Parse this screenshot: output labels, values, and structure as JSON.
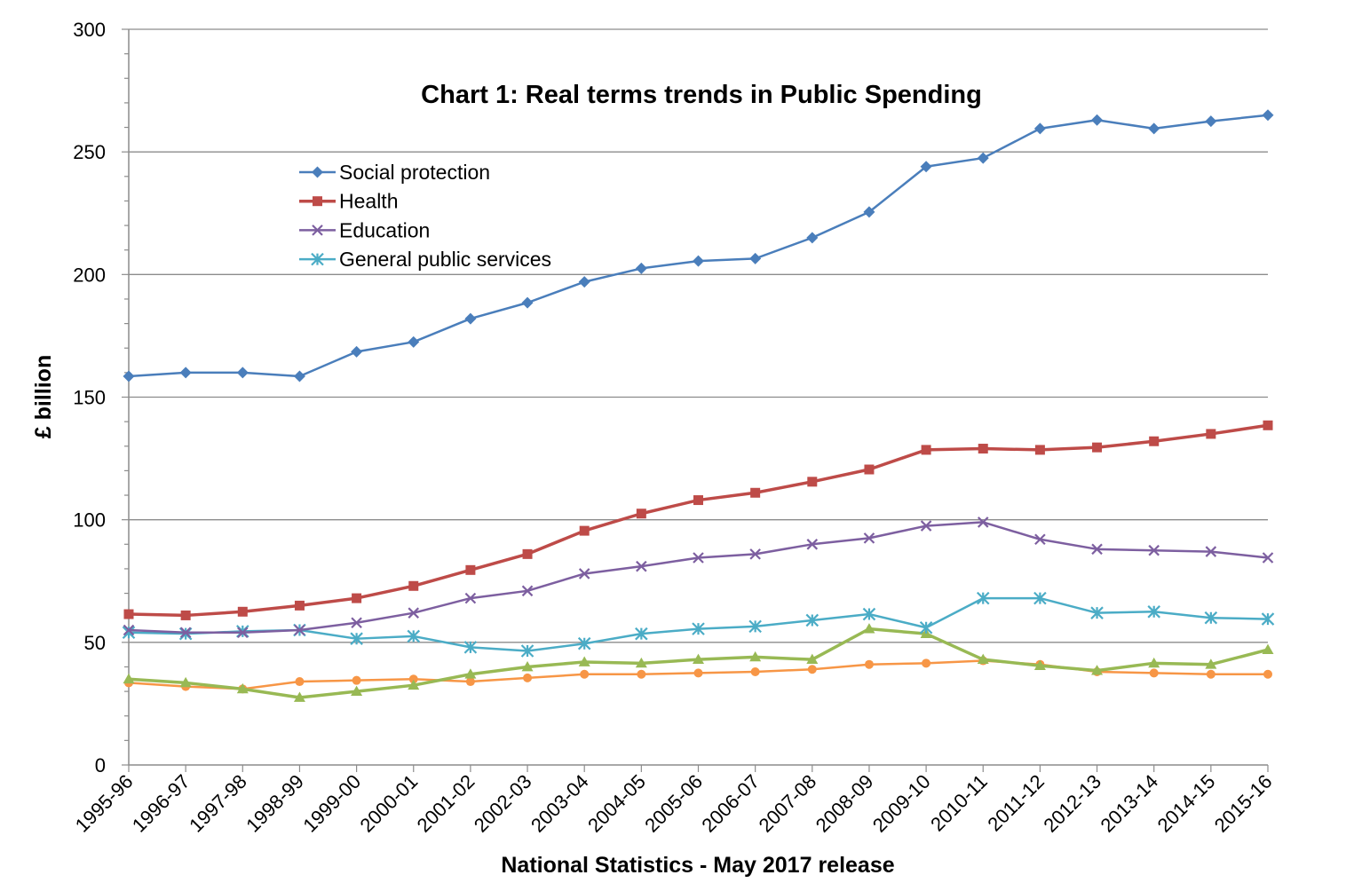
{
  "chart_data": {
    "type": "line",
    "title": "Chart 1: Real terms trends in Public Spending",
    "xlabel": "National Statistics - May 2017 release",
    "ylabel": "£ billion",
    "ylim": [
      0,
      300
    ],
    "yticks": [
      0,
      50,
      100,
      150,
      200,
      250,
      300
    ],
    "grid": true,
    "legend_position": "upper-left",
    "categories": [
      "1995-96",
      "1996-97",
      "1997-98",
      "1998-99",
      "1999-00",
      "2000-01",
      "2001-02",
      "2002-03",
      "2003-04",
      "2004-05",
      "2005-06",
      "2006-07",
      "2007-08",
      "2008-09",
      "2009-10",
      "2010-11",
      "2011-12",
      "2012-13",
      "2013-14",
      "2014-15",
      "2015-16"
    ],
    "series": [
      {
        "name": "Social protection",
        "color": "#4a7ebb",
        "marker": "diamond",
        "in_legend": true,
        "values": [
          158.5,
          160.0,
          160.0,
          158.5,
          168.5,
          172.5,
          182.0,
          188.5,
          197.0,
          202.5,
          205.5,
          206.5,
          215.0,
          225.5,
          244.0,
          247.5,
          259.5,
          263.0,
          259.5,
          262.5,
          265.0
        ]
      },
      {
        "name": "Health",
        "color": "#be4b48",
        "marker": "square",
        "in_legend": true,
        "values": [
          61.5,
          61.0,
          62.5,
          65.0,
          68.0,
          73.0,
          79.5,
          86.0,
          95.5,
          102.5,
          108.0,
          111.0,
          115.5,
          120.5,
          128.5,
          129.0,
          128.5,
          129.5,
          132.0,
          135.0,
          138.5
        ]
      },
      {
        "name": "Education",
        "color": "#7d5fa0",
        "marker": "x",
        "in_legend": true,
        "values": [
          55.0,
          54.0,
          54.0,
          55.0,
          58.0,
          62.0,
          68.0,
          71.0,
          78.0,
          81.0,
          84.5,
          86.0,
          90.0,
          92.5,
          97.5,
          99.0,
          92.0,
          88.0,
          87.5,
          87.0,
          84.5
        ]
      },
      {
        "name": "General public services",
        "color": "#4bacc6",
        "marker": "star",
        "in_legend": true,
        "values": [
          54.0,
          53.5,
          54.5,
          55.0,
          51.5,
          52.5,
          48.0,
          46.5,
          49.5,
          53.5,
          55.5,
          56.5,
          59.0,
          61.5,
          56.0,
          68.0,
          68.0,
          62.0,
          62.5,
          60.0,
          59.5
        ]
      },
      {
        "color": "#98b954",
        "marker": "triangle",
        "in_legend": false,
        "values": [
          35.0,
          33.5,
          31.0,
          27.5,
          30.0,
          32.5,
          37.0,
          40.0,
          42.0,
          41.5,
          43.0,
          44.0,
          43.0,
          55.5,
          53.5,
          43.0,
          40.5,
          38.5,
          41.5,
          41.0,
          47.0
        ]
      },
      {
        "color": "#f79646",
        "marker": "circle",
        "in_legend": false,
        "values": [
          33.5,
          32.0,
          31.0,
          34.0,
          34.5,
          35.0,
          34.0,
          35.5,
          37.0,
          37.0,
          37.5,
          38.0,
          39.0,
          41.0,
          41.5,
          42.5,
          41.0,
          38.0,
          37.5,
          37.0,
          37.0
        ]
      }
    ]
  }
}
